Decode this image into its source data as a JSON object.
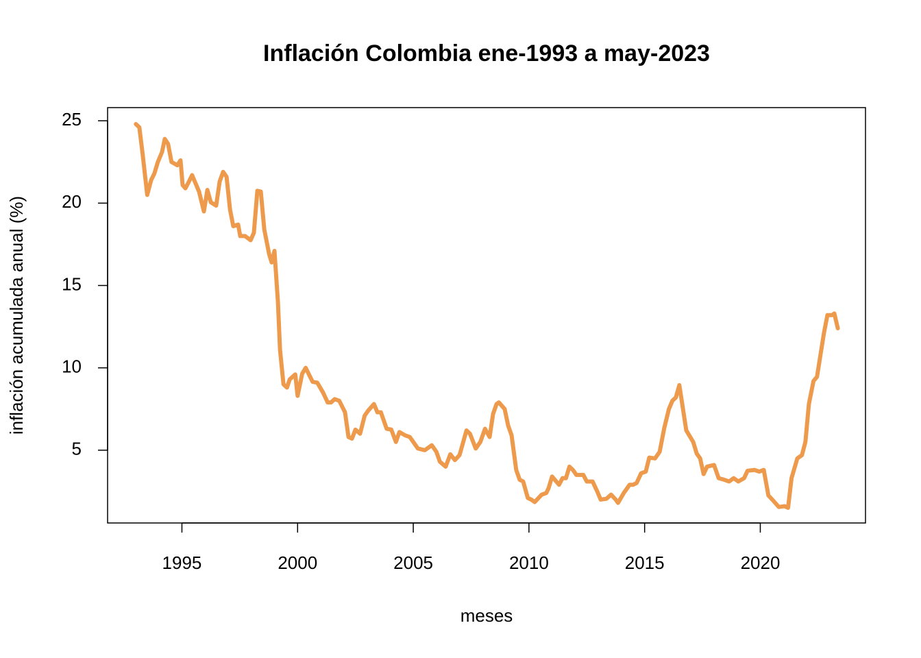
{
  "chart_data": {
    "type": "line",
    "title": "Inflación Colombia  ene-1993 a may-2023",
    "xlabel": "meses",
    "ylabel": "inflación acumulada anual (%)",
    "color": "#EE9A4D",
    "xlim": [
      1991.787,
      2024.547
    ],
    "ylim": [
      0.58,
      25.8
    ],
    "xticks": [
      1995,
      2000,
      2005,
      2010,
      2015,
      2020
    ],
    "yticks": [
      5,
      10,
      15,
      20,
      25
    ],
    "x": [
      1993.01,
      1993.16,
      1993.3,
      1993.5,
      1993.67,
      1993.81,
      1993.96,
      1994.14,
      1994.26,
      1994.4,
      1994.55,
      1994.8,
      1994.94,
      1995.03,
      1995.15,
      1995.3,
      1995.44,
      1995.74,
      1995.95,
      1996.1,
      1996.25,
      1996.48,
      1996.63,
      1996.78,
      1996.93,
      1997.08,
      1997.22,
      1997.43,
      1997.52,
      1997.73,
      1997.97,
      1998.11,
      1998.26,
      1998.41,
      1998.56,
      1998.77,
      1998.88,
      1999.0,
      1999.15,
      1999.24,
      1999.39,
      1999.54,
      1999.66,
      1999.9,
      2000.0,
      2000.2,
      2000.35,
      2000.65,
      2000.85,
      2001.1,
      2001.3,
      2001.45,
      2001.6,
      2001.8,
      2002.05,
      2002.2,
      2002.35,
      2002.5,
      2002.7,
      2002.9,
      2003.05,
      2003.3,
      2003.45,
      2003.6,
      2003.85,
      2004.05,
      2004.25,
      2004.4,
      2004.65,
      2004.85,
      2005.0,
      2005.2,
      2005.5,
      2005.8,
      2006.0,
      2006.15,
      2006.4,
      2006.6,
      2006.8,
      2007.0,
      2007.3,
      2007.45,
      2007.7,
      2007.9,
      2008.1,
      2008.3,
      2008.45,
      2008.6,
      2008.7,
      2008.95,
      2009.1,
      2009.25,
      2009.45,
      2009.6,
      2009.75,
      2009.95,
      2010.1,
      2010.25,
      2010.55,
      2010.75,
      2010.85,
      2011.0,
      2011.3,
      2011.45,
      2011.6,
      2011.75,
      2011.9,
      2012.05,
      2012.35,
      2012.5,
      2012.75,
      2012.95,
      2013.1,
      2013.35,
      2013.55,
      2013.75,
      2013.85,
      2014.1,
      2014.35,
      2014.5,
      2014.65,
      2014.85,
      2015.05,
      2015.2,
      2015.45,
      2015.65,
      2015.85,
      2016.05,
      2016.2,
      2016.35,
      2016.5,
      2016.8,
      2017.1,
      2017.25,
      2017.4,
      2017.55,
      2017.7,
      2018.0,
      2018.2,
      2018.45,
      2018.65,
      2018.85,
      2019.05,
      2019.3,
      2019.45,
      2019.75,
      2019.95,
      2020.15,
      2020.35,
      2020.55,
      2020.8,
      2021.05,
      2021.2,
      2021.35,
      2021.6,
      2021.8,
      2021.95,
      2022.1,
      2022.3,
      2022.45,
      2022.75,
      2022.9,
      2023.1,
      2023.2,
      2023.35
    ],
    "values": [
      24.8,
      24.6,
      23.0,
      20.5,
      21.4,
      21.8,
      22.5,
      23.1,
      23.9,
      23.6,
      22.5,
      22.3,
      22.6,
      21.1,
      20.9,
      21.3,
      21.7,
      20.7,
      19.5,
      20.8,
      20.05,
      19.85,
      21.3,
      21.9,
      21.6,
      19.6,
      18.6,
      18.7,
      18.0,
      18.0,
      17.75,
      18.2,
      20.75,
      20.7,
      18.4,
      16.9,
      16.4,
      17.1,
      14.0,
      11.1,
      9.0,
      8.8,
      9.3,
      9.6,
      8.3,
      9.65,
      10.0,
      9.15,
      9.1,
      8.5,
      7.9,
      7.9,
      8.1,
      8.0,
      7.3,
      5.8,
      5.7,
      6.25,
      6.0,
      7.1,
      7.4,
      7.8,
      7.3,
      7.3,
      6.3,
      6.25,
      5.5,
      6.1,
      5.9,
      5.8,
      5.5,
      5.1,
      5.0,
      5.3,
      4.9,
      4.3,
      4.0,
      4.75,
      4.4,
      4.7,
      6.2,
      6.0,
      5.1,
      5.5,
      6.3,
      5.8,
      7.2,
      7.8,
      7.9,
      7.5,
      6.5,
      5.9,
      3.8,
      3.2,
      3.1,
      2.1,
      2.0,
      1.85,
      2.3,
      2.4,
      2.7,
      3.4,
      2.9,
      3.3,
      3.3,
      4.0,
      3.8,
      3.5,
      3.5,
      3.1,
      3.1,
      2.5,
      2.0,
      2.05,
      2.3,
      2.0,
      1.8,
      2.4,
      2.9,
      2.9,
      3.0,
      3.6,
      3.7,
      4.55,
      4.5,
      4.9,
      6.35,
      7.5,
      8.0,
      8.2,
      8.95,
      6.2,
      5.5,
      4.8,
      4.5,
      3.55,
      4.0,
      4.1,
      3.3,
      3.2,
      3.1,
      3.3,
      3.1,
      3.3,
      3.75,
      3.8,
      3.7,
      3.8,
      2.25,
      1.95,
      1.55,
      1.6,
      1.5,
      3.3,
      4.5,
      4.7,
      5.5,
      7.8,
      9.2,
      9.45,
      12.1,
      13.2,
      13.2,
      13.3,
      12.4
    ]
  }
}
